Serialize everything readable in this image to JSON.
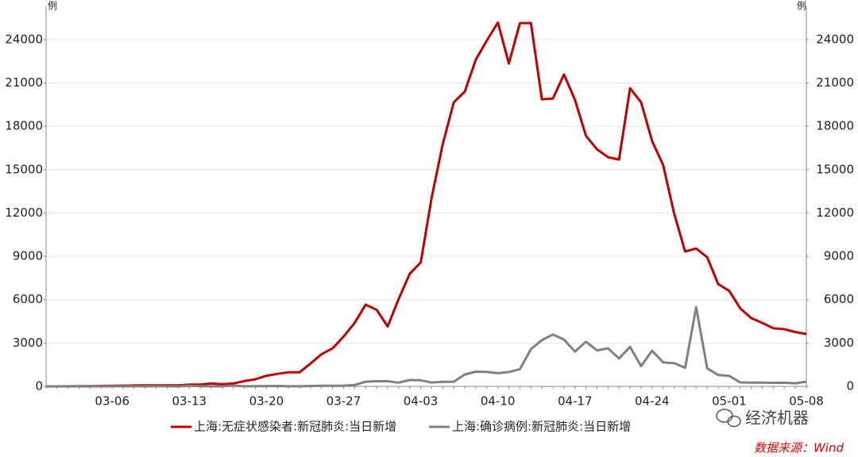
{
  "chart_data": {
    "type": "line",
    "y_label": "例",
    "y2_label": "例",
    "categories": [
      null,
      null,
      null,
      null,
      null,
      null,
      "03-06",
      null,
      null,
      null,
      null,
      null,
      null,
      "03-13",
      null,
      null,
      null,
      null,
      null,
      null,
      "03-20",
      null,
      null,
      null,
      null,
      null,
      null,
      "03-27",
      null,
      null,
      null,
      null,
      null,
      null,
      "04-03",
      null,
      null,
      null,
      null,
      null,
      null,
      "04-10",
      null,
      null,
      null,
      null,
      null,
      null,
      "04-17",
      null,
      null,
      null,
      null,
      null,
      null,
      "04-24",
      null,
      null,
      null,
      null,
      null,
      null,
      "05-01",
      null,
      null,
      null,
      null,
      null,
      null,
      "05-08"
    ],
    "series": [
      {
        "name": "上海:无症状感染者:新冠肺炎:当日新增",
        "color": "#c00000",
        "values": [
          0,
          1,
          3,
          14,
          16,
          28,
          45,
          51,
          62,
          76,
          64,
          78,
          64,
          128,
          130,
          197,
          150,
          203,
          366,
          492,
          734,
          865,
          977,
          979,
          1580,
          2231,
          2631,
          3450,
          4381,
          5656,
          5298,
          4144,
          6051,
          7788,
          8581,
          13086,
          16766,
          19660,
          20398,
          22609,
          23937,
          25173,
          22348,
          25141,
          25146,
          19872,
          19923,
          21582,
          19831,
          17332,
          16407,
          15861,
          15698,
          20634,
          19657,
          16983,
          15319,
          11956,
          9330,
          9545,
          8932,
          7084,
          6606,
          5395,
          4722,
          4390,
          4024,
          3961,
          3760,
          3625
        ]
      },
      {
        "name": "上海:确诊病例:新冠肺炎:当日新增",
        "color": "#808080",
        "values": [
          0,
          1,
          0,
          2,
          3,
          0,
          3,
          4,
          3,
          4,
          11,
          5,
          1,
          41,
          9,
          5,
          8,
          57,
          8,
          17,
          24,
          31,
          4,
          4,
          29,
          38,
          45,
          50,
          96,
          326,
          355,
          358,
          260,
          438,
          425,
          268,
          311,
          322,
          824,
          1015,
          1006,
          914,
          994,
          1189,
          2573,
          3200,
          3590,
          3238,
          2417,
          3084,
          2494,
          2634,
          1931,
          2736,
          1401,
          2472,
          1661,
          1606,
          1292,
          5487,
          1249,
          788,
          727,
          274,
          260,
          261,
          245,
          253,
          215,
          322
        ]
      }
    ],
    "ylim": [
      0,
      26300
    ],
    "yticks": [
      0,
      3000,
      6000,
      9000,
      12000,
      15000,
      18000,
      21000,
      24000
    ],
    "y2lim": [
      0,
      26300
    ],
    "y2ticks": [
      0,
      3000,
      6000,
      9000,
      12000,
      15000,
      18000,
      21000,
      24000
    ],
    "grid": true,
    "watermark": "经济机器",
    "source": "数据来源：Wind"
  }
}
